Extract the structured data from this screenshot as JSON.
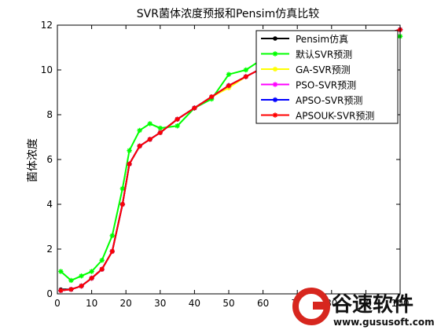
{
  "chart_data": {
    "type": "line",
    "title": "SVR菌体浓度预报和Pensim仿真比较",
    "xlabel": "",
    "ylabel": "菌体浓度",
    "xlim": [
      0,
      100
    ],
    "ylim": [
      0,
      12
    ],
    "xticks": [
      0,
      10,
      20,
      30,
      40,
      50,
      60,
      70,
      80,
      90,
      100
    ],
    "yticks": [
      0,
      2,
      4,
      6,
      8,
      10,
      12
    ],
    "grid": false,
    "legend_position": "top-right",
    "x": [
      1,
      4,
      7,
      10,
      13,
      16,
      19,
      21,
      24,
      27,
      30,
      35,
      40,
      45,
      50,
      55,
      60,
      70,
      80,
      90,
      100
    ],
    "series": [
      {
        "name": "Pensim仿真",
        "color": "#000000",
        "marker": "dot",
        "values": [
          0.2,
          0.2,
          0.35,
          0.7,
          1.1,
          1.9,
          4.0,
          5.8,
          6.6,
          6.9,
          7.2,
          7.8,
          8.3,
          8.8,
          9.3,
          9.7,
          10.1,
          10.6,
          11.0,
          11.4,
          11.8
        ]
      },
      {
        "name": "默认SVR预测",
        "color": "#00ff00",
        "marker": "star",
        "values": [
          1.0,
          0.6,
          0.8,
          1.0,
          1.5,
          2.6,
          4.7,
          6.4,
          7.3,
          7.6,
          7.4,
          7.5,
          8.3,
          8.7,
          9.8,
          10.0,
          10.5,
          10.6,
          11.0,
          11.2,
          11.5
        ]
      },
      {
        "name": "GA-SVR预测",
        "color": "#ffff00",
        "marker": "star",
        "values": [
          0.15,
          0.2,
          0.35,
          0.7,
          1.1,
          1.9,
          4.0,
          5.8,
          6.6,
          6.9,
          7.2,
          7.8,
          8.3,
          8.8,
          9.2,
          9.7,
          10.1,
          10.6,
          11.0,
          11.4,
          11.8
        ]
      },
      {
        "name": "PSO-SVR预测",
        "color": "#ff00ff",
        "marker": "star",
        "values": [
          0.15,
          0.2,
          0.35,
          0.7,
          1.1,
          1.9,
          4.0,
          5.8,
          6.6,
          6.9,
          7.2,
          7.8,
          8.3,
          8.8,
          9.3,
          9.7,
          10.1,
          10.6,
          11.0,
          11.4,
          11.8
        ]
      },
      {
        "name": "APSO-SVR预测",
        "color": "#0000ff",
        "marker": "star",
        "values": [
          0.15,
          0.2,
          0.35,
          0.7,
          1.1,
          1.9,
          4.0,
          5.8,
          6.6,
          6.9,
          7.2,
          7.8,
          8.3,
          8.8,
          9.3,
          9.7,
          10.1,
          10.6,
          11.0,
          11.4,
          11.8
        ]
      },
      {
        "name": "APSOUK-SVR预测",
        "color": "#ff0000",
        "marker": "star",
        "values": [
          0.15,
          0.2,
          0.35,
          0.7,
          1.1,
          1.9,
          4.0,
          5.8,
          6.6,
          6.9,
          7.2,
          7.8,
          8.3,
          8.8,
          9.3,
          9.7,
          10.1,
          10.6,
          11.0,
          11.4,
          11.8
        ]
      }
    ]
  },
  "watermark": {
    "brand": "谷速软件",
    "url": "www.gususoft.com",
    "logo_color": "#d7261e"
  }
}
